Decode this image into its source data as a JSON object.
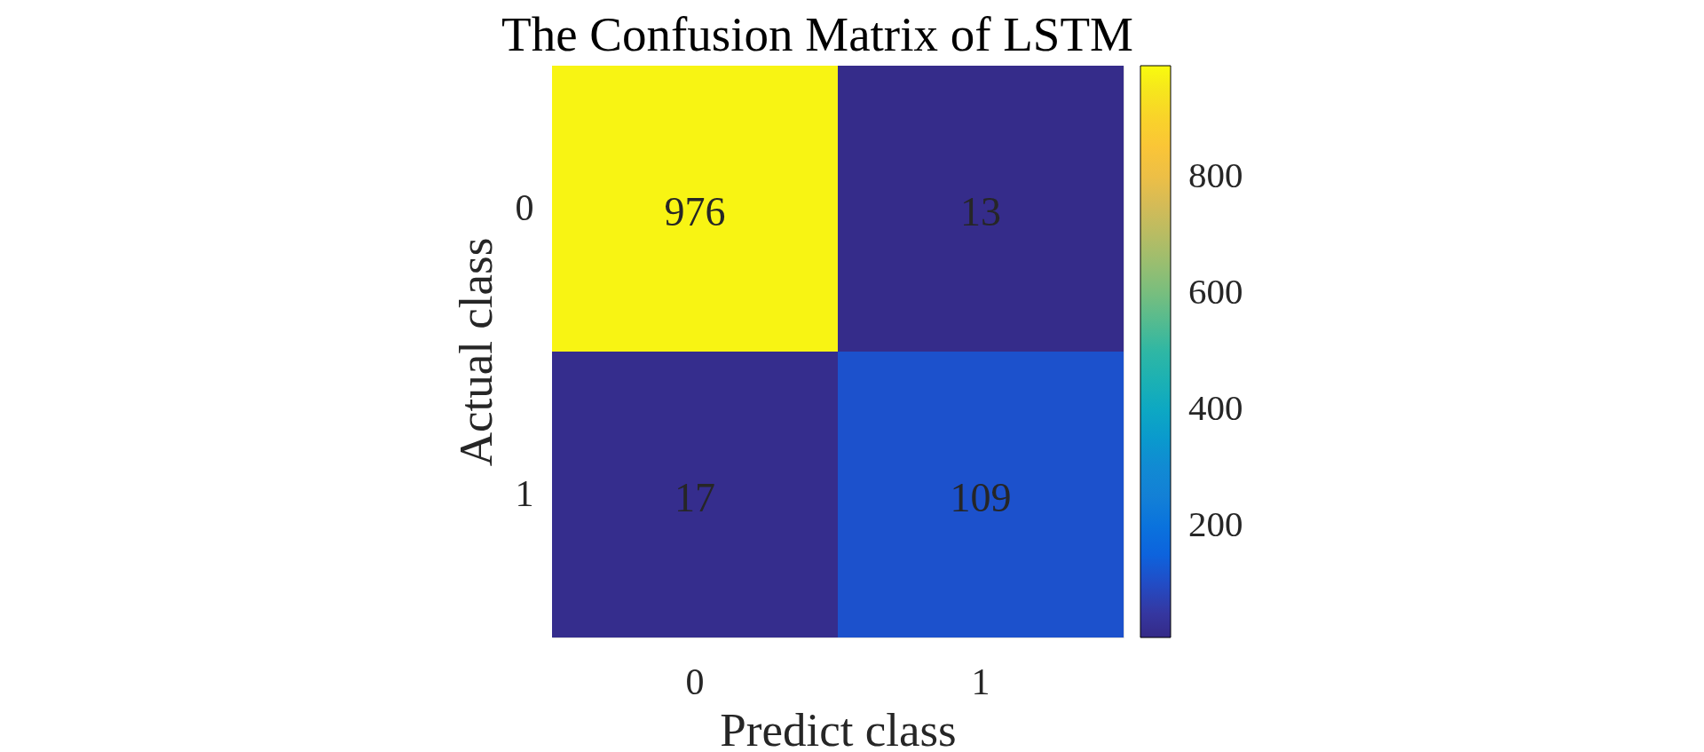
{
  "chart_data": {
    "type": "heatmap",
    "title": "The Confusion Matrix of LSTM",
    "xlabel": "Predict class",
    "ylabel": "Actual class",
    "categories": [
      "0",
      "1"
    ],
    "y_categories": [
      "0",
      "1"
    ],
    "cells": [
      [
        976,
        13
      ],
      [
        17,
        109
      ]
    ],
    "data_labels": true,
    "clim": [
      8,
      990
    ],
    "cticks": [
      200,
      400,
      600,
      800
    ]
  }
}
